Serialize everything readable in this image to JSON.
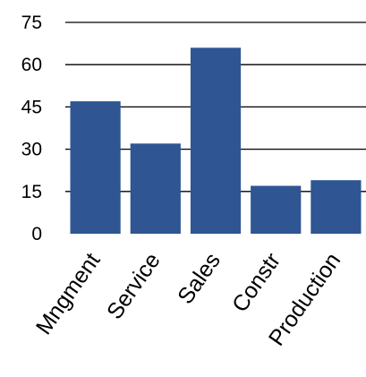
{
  "chart_data": {
    "type": "bar",
    "categories": [
      "Mngment",
      "Service",
      "Sales",
      "Constr",
      "Production"
    ],
    "values": [
      47,
      32,
      66,
      17,
      19
    ],
    "title": "",
    "xlabel": "",
    "ylabel": "",
    "ylim": [
      0,
      75
    ],
    "yticks": [
      0,
      15,
      30,
      45,
      60,
      75
    ],
    "grid": true,
    "legend": "none",
    "bar_color": "#2f5693"
  }
}
